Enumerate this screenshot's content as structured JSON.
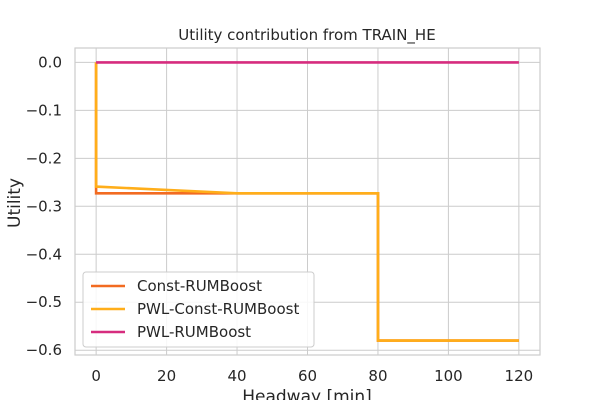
{
  "chart_data": {
    "type": "line",
    "title": "Utility contribution from TRAIN_HE",
    "xlabel": "Headway [min]",
    "ylabel": "Utility",
    "xlim": [
      -6,
      126
    ],
    "ylim": [
      -0.61,
      0.03
    ],
    "xticks": [
      0,
      20,
      40,
      60,
      80,
      100,
      120
    ],
    "xtick_labels": [
      "0",
      "20",
      "40",
      "60",
      "80",
      "100",
      "120"
    ],
    "yticks": [
      0.0,
      -0.1,
      -0.2,
      -0.3,
      -0.4,
      -0.5,
      -0.6
    ],
    "ytick_labels": [
      "0.0",
      "−0.1",
      "−0.2",
      "−0.3",
      "−0.4",
      "−0.5",
      "−0.6"
    ],
    "grid": true,
    "legend_position": "lower-left",
    "series": [
      {
        "name": "Const-RUMBoost",
        "color": "#f26b21",
        "x": [
          0,
          0,
          80,
          80,
          120
        ],
        "y": [
          0.0,
          -0.273,
          -0.273,
          -0.58,
          -0.58
        ]
      },
      {
        "name": "PWL-Const-RUMBoost",
        "color": "#ffae1a",
        "x": [
          0,
          0,
          40,
          80,
          80,
          120
        ],
        "y": [
          0.0,
          -0.259,
          -0.273,
          -0.273,
          -0.58,
          -0.58
        ]
      },
      {
        "name": "PWL-RUMBoost",
        "color": "#d62c7e",
        "x": [
          0,
          120
        ],
        "y": [
          0.0,
          0.0
        ]
      }
    ]
  }
}
